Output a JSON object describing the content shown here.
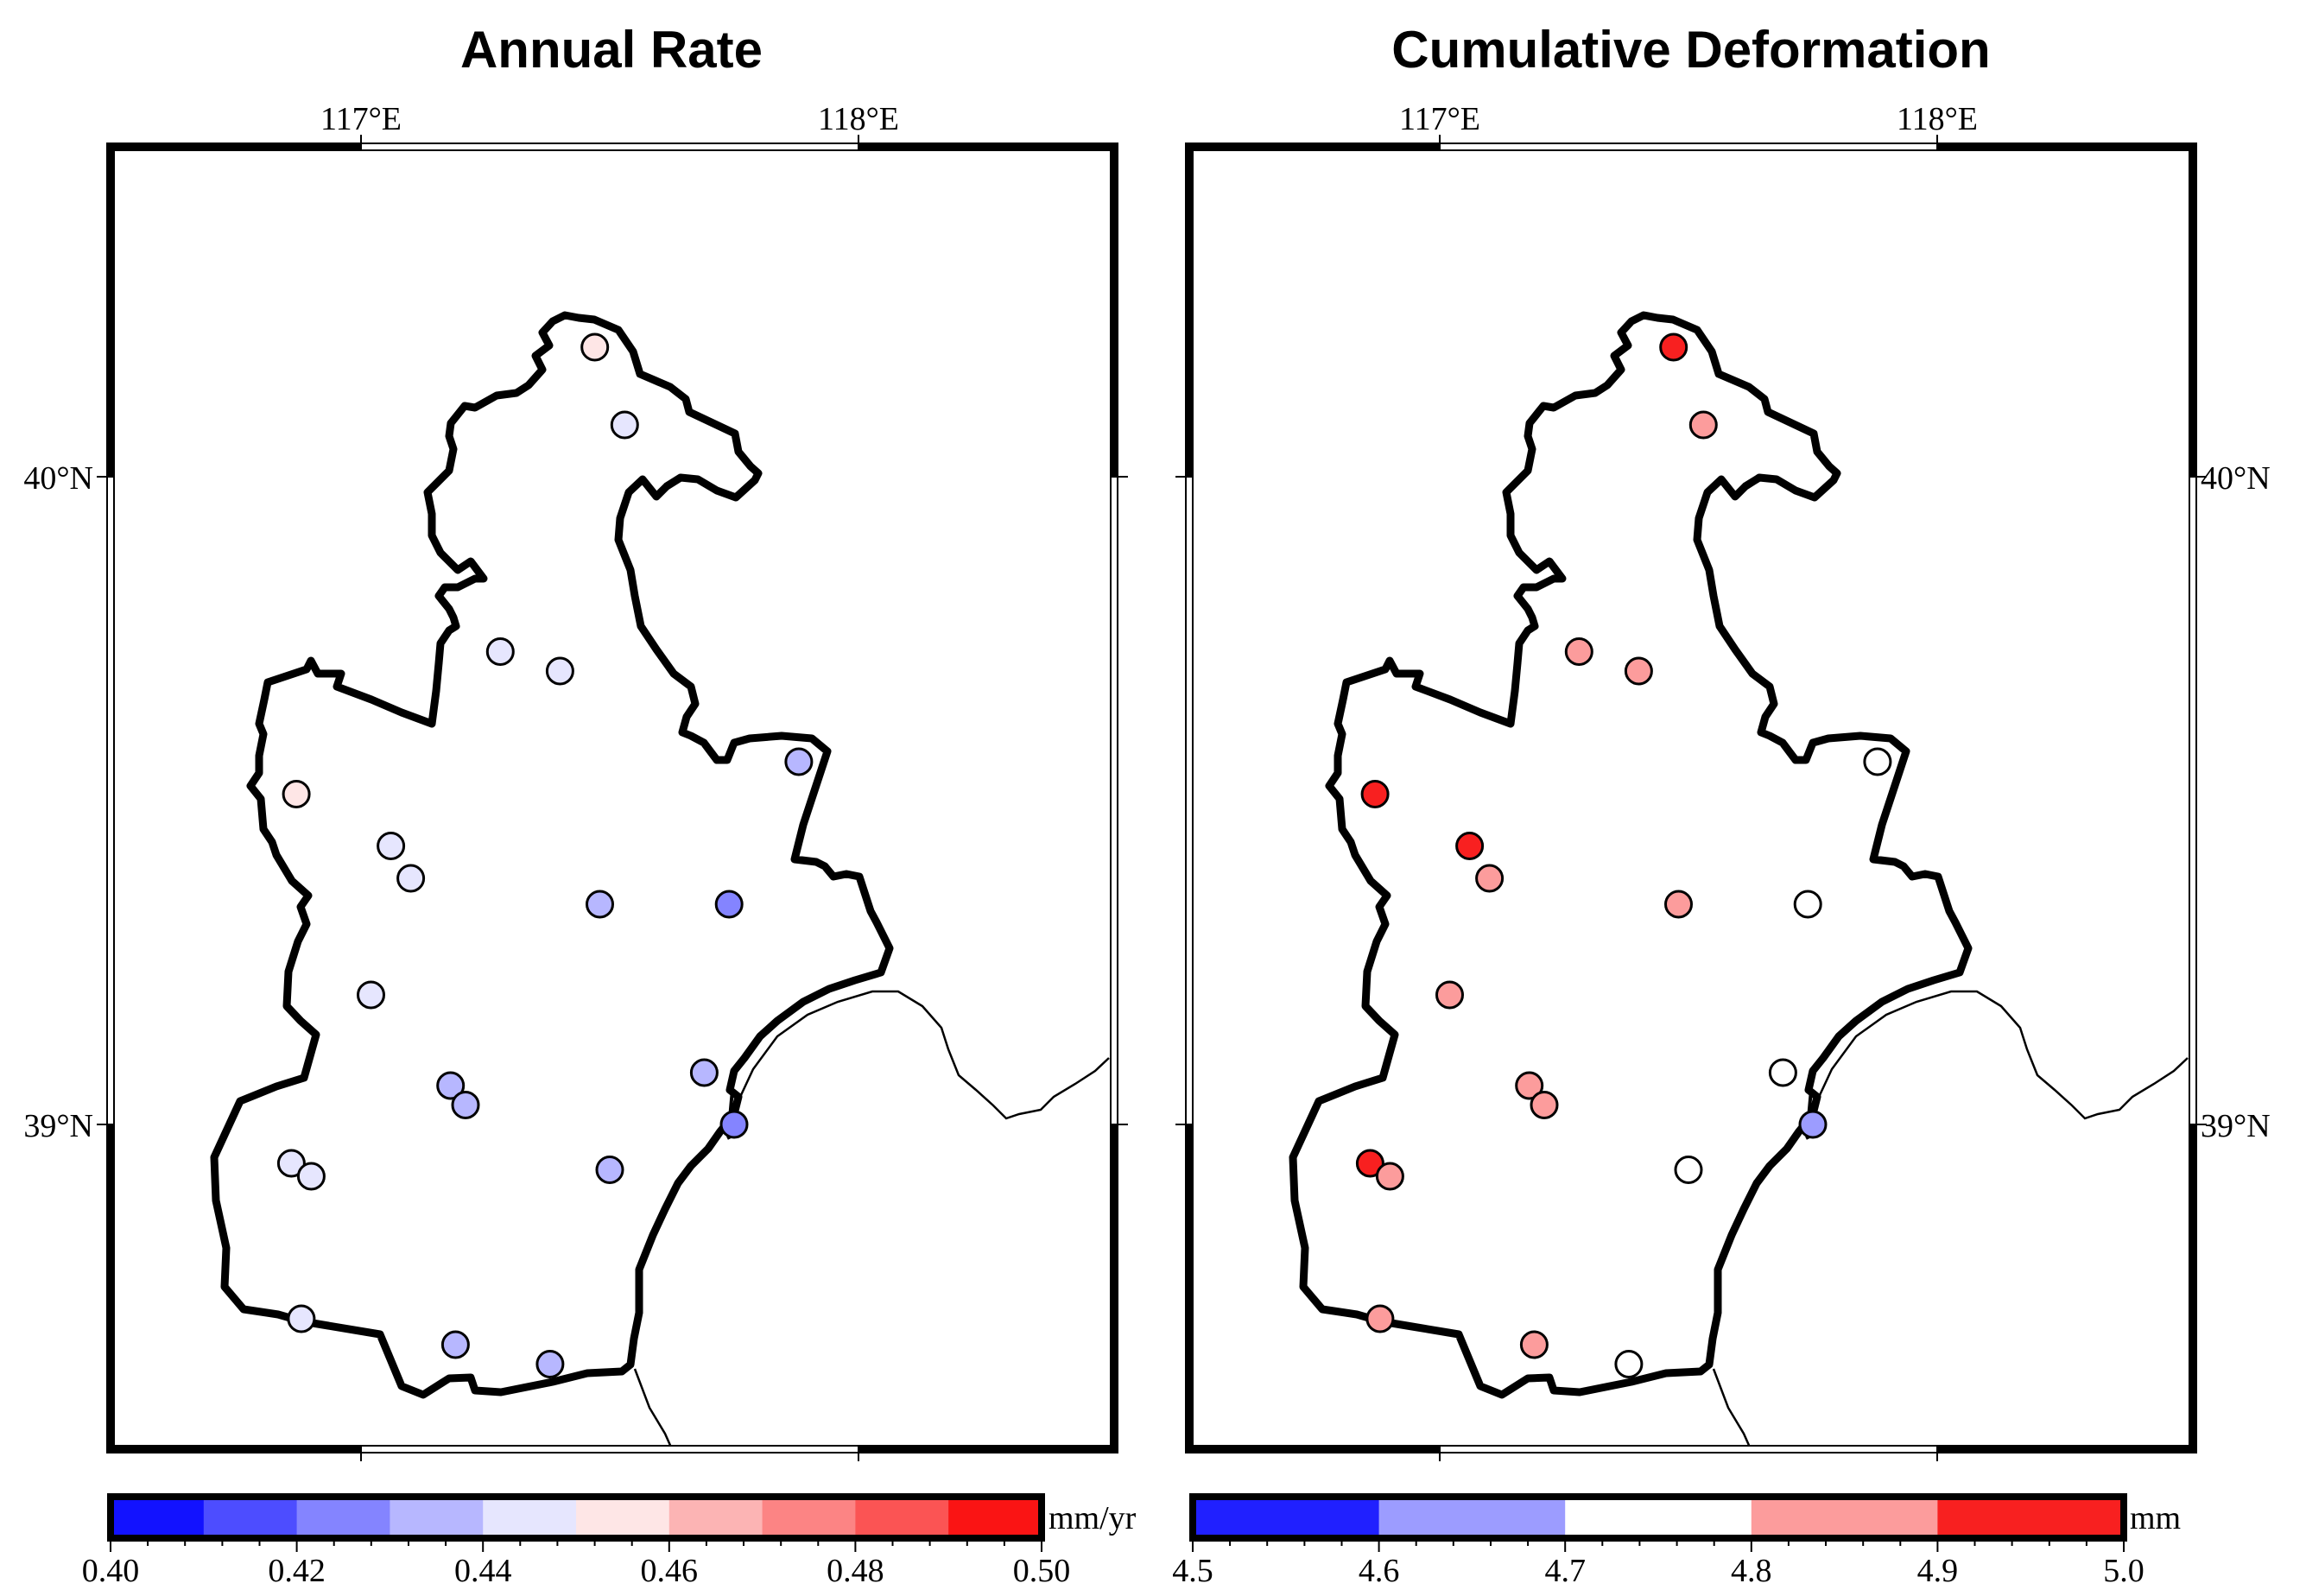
{
  "figure": {
    "colors": {
      "frame": "#000000",
      "boundary": "#000000",
      "coast": "#000000",
      "marker_edge": "#000000",
      "background": "#ffffff"
    },
    "panels": [
      {
        "key": "rate",
        "title": "Annual Rate",
        "lon_labels": [
          "117°E",
          "118°E"
        ],
        "lat_labels": [
          "40°N",
          "39°N"
        ],
        "colorbar": {
          "unit": "mm/yr",
          "tick_labels": [
            "0.40",
            "0.42",
            "0.44",
            "0.46",
            "0.48",
            "0.50"
          ],
          "bins": [
            {
              "from": 0.4,
              "to": 0.41,
              "color": "#1212ff"
            },
            {
              "from": 0.41,
              "to": 0.42,
              "color": "#4d4dff"
            },
            {
              "from": 0.42,
              "to": 0.43,
              "color": "#8484ff"
            },
            {
              "from": 0.43,
              "to": 0.44,
              "color": "#b7b7ff"
            },
            {
              "from": 0.44,
              "to": 0.45,
              "color": "#e6e6fe"
            },
            {
              "from": 0.45,
              "to": 0.46,
              "color": "#fee6e6"
            },
            {
              "from": 0.46,
              "to": 0.47,
              "color": "#fcb4b4"
            },
            {
              "from": 0.47,
              "to": 0.48,
              "color": "#fc8484"
            },
            {
              "from": 0.48,
              "to": 0.49,
              "color": "#fb5454"
            },
            {
              "from": 0.49,
              "to": 0.5,
              "color": "#fa1414"
            }
          ]
        }
      },
      {
        "key": "cumulative",
        "title": "Cumulative Deformation",
        "lon_labels": [
          "117°E",
          "118°E"
        ],
        "lat_labels": [
          "40°N",
          "39°N"
        ],
        "colorbar": {
          "unit": "mm",
          "tick_labels": [
            "4.5",
            "4.6",
            "4.7",
            "4.8",
            "4.9",
            "5.0"
          ],
          "bins": [
            {
              "from": 4.5,
              "to": 4.6,
              "color": "#2020ff"
            },
            {
              "from": 4.6,
              "to": 4.7,
              "color": "#9c9cff"
            },
            {
              "from": 4.7,
              "to": 4.8,
              "color": "#ffffff"
            },
            {
              "from": 4.8,
              "to": 4.9,
              "color": "#fc9c9c"
            },
            {
              "from": 4.9,
              "to": 5.0,
              "color": "#f82020"
            }
          ]
        }
      }
    ],
    "stations": [
      {
        "lon": 117.47,
        "lat": 40.2,
        "rate": 0.455,
        "cum": 4.95
      },
      {
        "lon": 117.53,
        "lat": 40.08,
        "rate": 0.445,
        "cum": 4.85
      },
      {
        "lon": 117.28,
        "lat": 39.73,
        "rate": 0.445,
        "cum": 4.85
      },
      {
        "lon": 117.4,
        "lat": 39.7,
        "rate": 0.445,
        "cum": 4.85
      },
      {
        "lon": 117.88,
        "lat": 39.56,
        "rate": 0.435,
        "cum": 4.75
      },
      {
        "lon": 116.87,
        "lat": 39.51,
        "rate": 0.455,
        "cum": 4.95
      },
      {
        "lon": 117.06,
        "lat": 39.43,
        "rate": 0.445,
        "cum": 4.95
      },
      {
        "lon": 117.1,
        "lat": 39.38,
        "rate": 0.445,
        "cum": 4.85
      },
      {
        "lon": 117.48,
        "lat": 39.34,
        "rate": 0.435,
        "cum": 4.85
      },
      {
        "lon": 117.74,
        "lat": 39.34,
        "rate": 0.425,
        "cum": 4.75
      },
      {
        "lon": 117.02,
        "lat": 39.2,
        "rate": 0.445,
        "cum": 4.85
      },
      {
        "lon": 117.69,
        "lat": 39.08,
        "rate": 0.435,
        "cum": 4.75
      },
      {
        "lon": 117.18,
        "lat": 39.06,
        "rate": 0.435,
        "cum": 4.85
      },
      {
        "lon": 117.21,
        "lat": 39.03,
        "rate": 0.435,
        "cum": 4.85
      },
      {
        "lon": 117.75,
        "lat": 39.0,
        "rate": 0.425,
        "cum": 4.65
      },
      {
        "lon": 116.86,
        "lat": 38.94,
        "rate": 0.445,
        "cum": 4.95
      },
      {
        "lon": 116.9,
        "lat": 38.92,
        "rate": 0.445,
        "cum": 4.85
      },
      {
        "lon": 117.5,
        "lat": 38.93,
        "rate": 0.435,
        "cum": 4.75
      },
      {
        "lon": 116.88,
        "lat": 38.7,
        "rate": 0.445,
        "cum": 4.85
      },
      {
        "lon": 117.19,
        "lat": 38.66,
        "rate": 0.435,
        "cum": 4.85
      },
      {
        "lon": 117.38,
        "lat": 38.63,
        "rate": 0.435,
        "cum": 4.75
      }
    ]
  }
}
